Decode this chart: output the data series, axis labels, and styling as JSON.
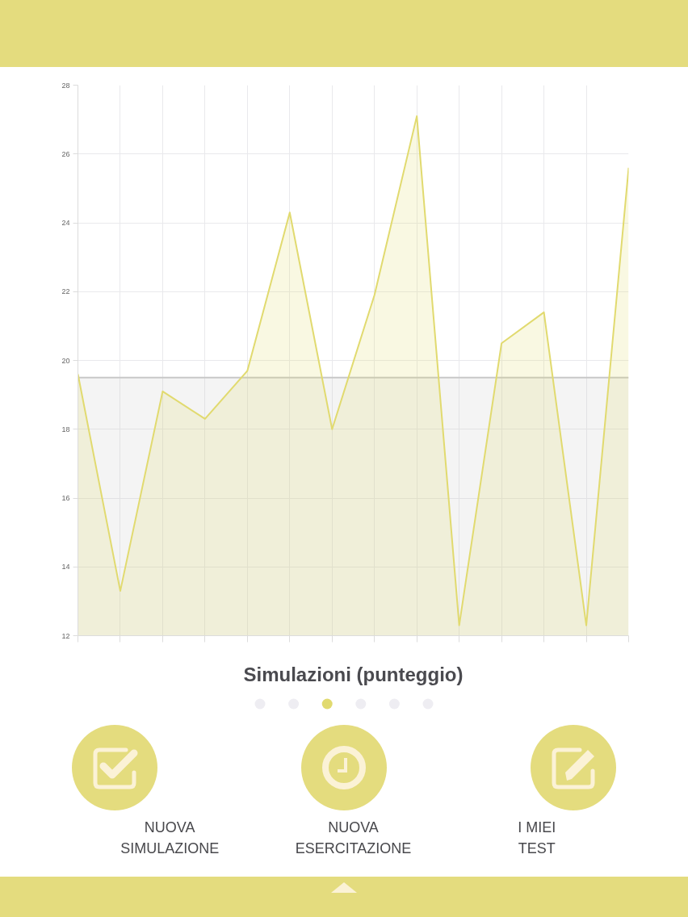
{
  "chart_data": {
    "type": "area",
    "title": "Simulazioni (punteggio)",
    "categories": [
      null,
      null,
      null,
      null,
      null,
      null,
      null,
      null,
      null,
      null,
      null,
      null,
      null,
      null
    ],
    "series": [
      {
        "color": "#c8c8c8",
        "values": [
          19.5,
          19.5,
          19.5,
          19.5,
          19.5,
          19.5,
          19.5,
          19.5,
          19.5,
          19.5,
          19.5,
          19.5,
          19.5,
          19.5
        ]
      },
      {
        "color": "#e1da6f",
        "values": [
          19.6,
          13.3,
          19.1,
          18.3,
          19.7,
          24.3,
          18.0,
          21.9,
          27.1,
          12.3,
          20.5,
          21.4,
          12.3,
          25.6
        ]
      }
    ],
    "ylim": [
      12,
      28
    ],
    "yticks": [
      12,
      14,
      16,
      18,
      20,
      22,
      24,
      26,
      28
    ],
    "grid": true,
    "tick_labels": "y",
    "annotations": [
      "NUOVA SIMULAZIONE",
      "NUOVA ESERCITAZIONE",
      "I MIEI TEST"
    ]
  }
}
